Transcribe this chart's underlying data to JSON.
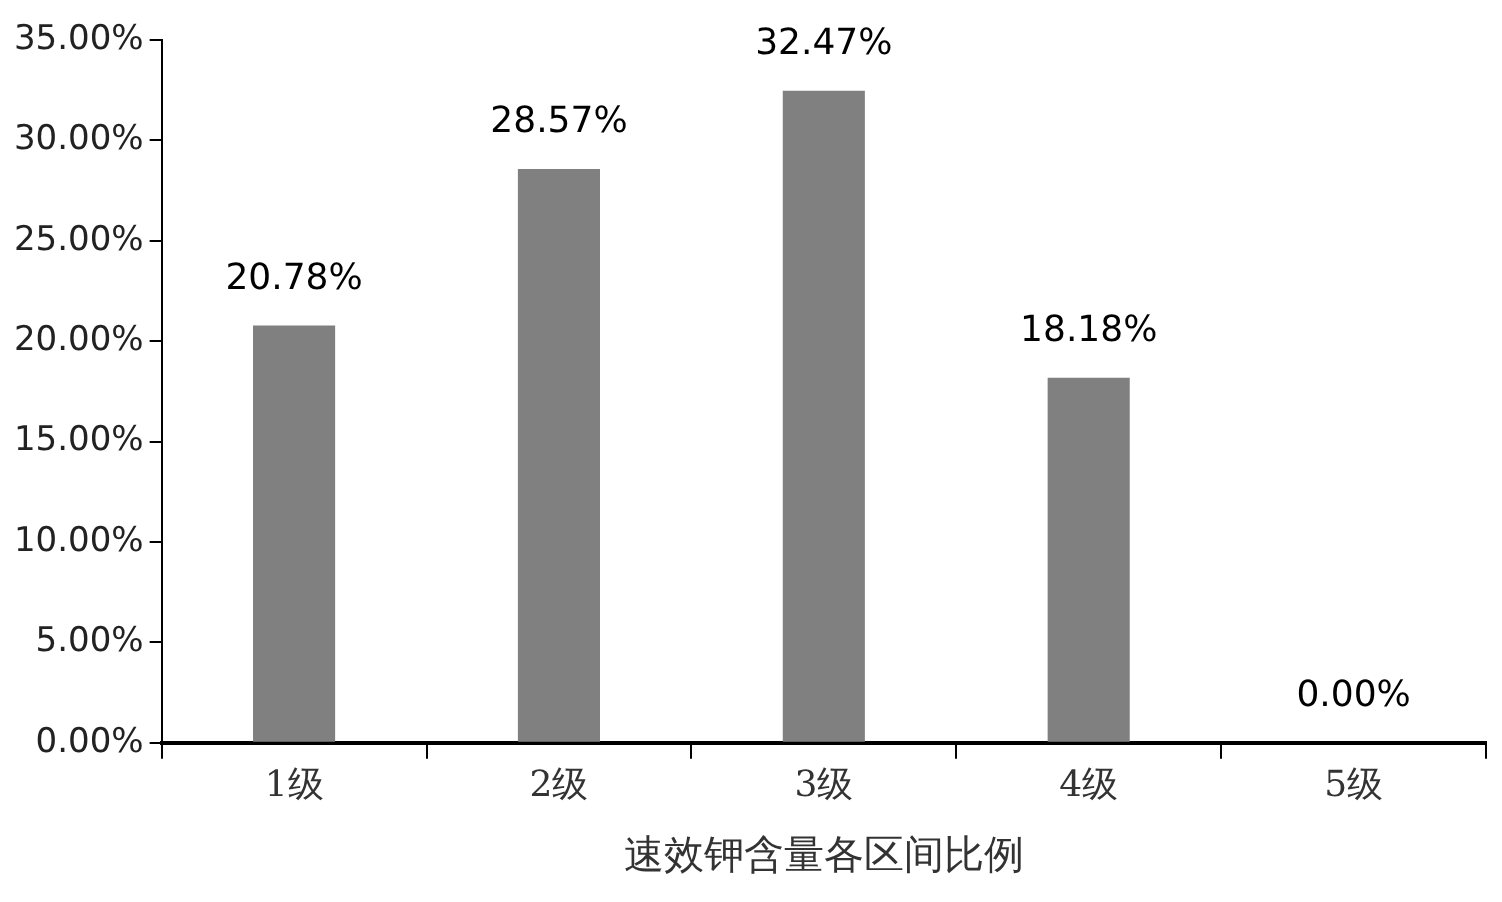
{
  "chart_data": {
    "type": "bar",
    "xlabel": "速效钾含量各区间比例",
    "categories": [
      "1级",
      "2级",
      "3级",
      "4级",
      "5级"
    ],
    "values": [
      20.78,
      28.57,
      32.47,
      18.18,
      0.0
    ],
    "value_labels": [
      "20.78%",
      "28.57%",
      "32.47%",
      "18.18%",
      "0.00%"
    ],
    "color": "#808080",
    "ylim": [
      0,
      35
    ],
    "yticks": [
      {
        "value": 0,
        "label": "0.00%"
      },
      {
        "value": 5,
        "label": "5.00%"
      },
      {
        "value": 10,
        "label": "10.00%"
      },
      {
        "value": 15,
        "label": "15.00%"
      },
      {
        "value": 20,
        "label": "20.00%"
      },
      {
        "value": 25,
        "label": "25.00%"
      },
      {
        "value": 30,
        "label": "30.00%"
      },
      {
        "value": 35,
        "label": "35.00%"
      }
    ],
    "grid": false,
    "legend": false
  }
}
